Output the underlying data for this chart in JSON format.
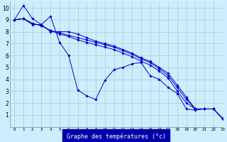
{
  "title": "Graphe des températures (°c)",
  "background_color": "#cceeff",
  "grid_color": "#aacccc",
  "line_color": "#0000cc",
  "xlabel_bg": "#0000aa",
  "xlabel_fg": "#ffffff",
  "xlim": [
    -0.5,
    23
  ],
  "ylim": [
    0,
    10.5
  ],
  "xticks": [
    0,
    1,
    2,
    3,
    4,
    5,
    6,
    7,
    8,
    9,
    10,
    11,
    12,
    13,
    14,
    15,
    16,
    17,
    18,
    19,
    20,
    21,
    22,
    23
  ],
  "yticks": [
    1,
    2,
    3,
    4,
    5,
    6,
    7,
    8,
    9,
    10
  ],
  "series": [
    [
      9.0,
      10.2,
      9.1,
      8.6,
      9.3,
      7.1,
      6.0,
      3.1,
      2.6,
      2.3,
      3.9,
      4.8,
      5.0,
      5.3,
      5.4,
      4.3,
      4.0,
      3.3,
      2.8,
      1.5,
      1.4,
      1.5,
      1.5,
      0.7
    ],
    [
      9.0,
      9.1,
      8.6,
      8.6,
      8.0,
      8.0,
      8.0,
      7.8,
      7.5,
      7.2,
      7.0,
      6.8,
      6.5,
      6.2,
      5.8,
      5.5,
      5.0,
      4.5,
      3.5,
      2.5,
      1.5,
      1.5,
      1.5,
      0.7
    ],
    [
      9.0,
      9.1,
      8.7,
      8.5,
      8.1,
      7.9,
      7.7,
      7.5,
      7.3,
      7.1,
      6.9,
      6.7,
      6.4,
      6.1,
      5.7,
      5.4,
      4.9,
      4.3,
      3.3,
      2.3,
      1.5,
      1.5,
      1.5,
      0.7
    ],
    [
      9.0,
      9.1,
      8.7,
      8.5,
      8.1,
      7.8,
      7.6,
      7.3,
      7.1,
      6.9,
      6.7,
      6.5,
      6.2,
      5.9,
      5.5,
      5.2,
      4.7,
      4.1,
      3.0,
      2.0,
      1.5,
      1.5,
      1.5,
      0.7
    ]
  ]
}
